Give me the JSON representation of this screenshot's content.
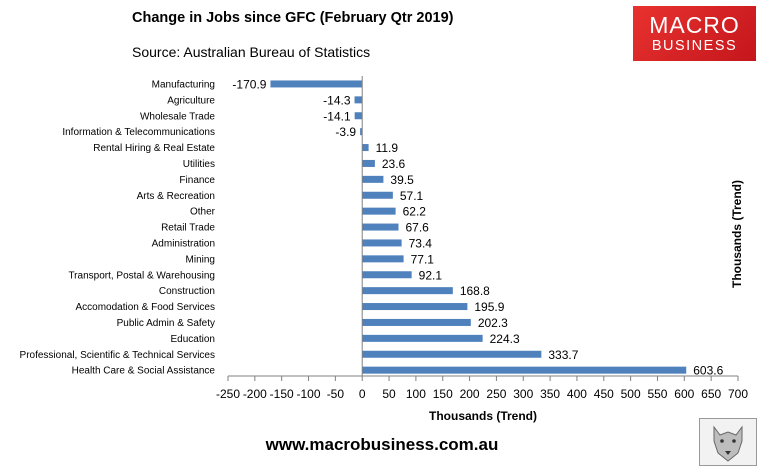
{
  "header": {
    "title": "Change in Jobs since GFC (February Qtr 2019)",
    "subtitle": "Source: Australian Bureau of Statistics"
  },
  "logo": {
    "line1": "MACRO",
    "line2": "BUSINESS"
  },
  "footer": {
    "url": "www.macrobusiness.com.au"
  },
  "colors": {
    "bar": "#4f81bd",
    "logo_red": "#d9231f",
    "axis": "#808080"
  },
  "chart_data": {
    "type": "bar",
    "orientation": "horizontal",
    "categories": [
      "Manufacturing",
      "Agriculture",
      "Wholesale Trade",
      "Information & Telecommunications",
      "Rental Hiring & Real Estate",
      "Utilities",
      "Finance",
      "Arts & Recreation",
      "Other",
      "Retail Trade",
      "Administration",
      "Mining",
      "Transport, Postal & Warehousing",
      "Construction",
      "Accomodation & Food Services",
      "Public Admin & Safety",
      "Education",
      "Professional, Scientific & Technical Services",
      "Health Care & Social Assistance"
    ],
    "values": [
      -170.9,
      -14.3,
      -14.1,
      -3.9,
      11.9,
      23.6,
      39.5,
      57.1,
      62.2,
      67.6,
      73.4,
      77.1,
      92.1,
      168.8,
      195.9,
      202.3,
      224.3,
      333.7,
      603.6
    ],
    "value_labels": [
      "-170.9",
      "-14.3",
      "-14.1",
      "-3.9",
      "11.9",
      "23.6",
      "39.5",
      "57.1",
      "62.2",
      "67.6",
      "73.4",
      "77.1",
      "92.1",
      "168.8",
      "195.9",
      "202.3",
      "224.3",
      "333.7",
      "603.6"
    ],
    "title": "Change in Jobs since GFC (February Qtr 2019)",
    "xlabel": "Thousands (Trend)",
    "secondary_axis_label": "Thousands (Trend)",
    "xlim": [
      -250,
      700
    ],
    "xticks": [
      -250,
      -200,
      -150,
      -100,
      -50,
      0,
      50,
      100,
      150,
      200,
      250,
      300,
      350,
      400,
      450,
      500,
      550,
      600,
      650,
      700
    ],
    "xtick_labels": [
      "-250",
      "-200",
      "-150",
      "-100",
      "-50",
      "0",
      "50",
      "100",
      "150",
      "200",
      "250",
      "300",
      "350",
      "400",
      "450",
      "500",
      "550",
      "600",
      "650",
      "700"
    ],
    "grid": false,
    "legend": "none"
  }
}
